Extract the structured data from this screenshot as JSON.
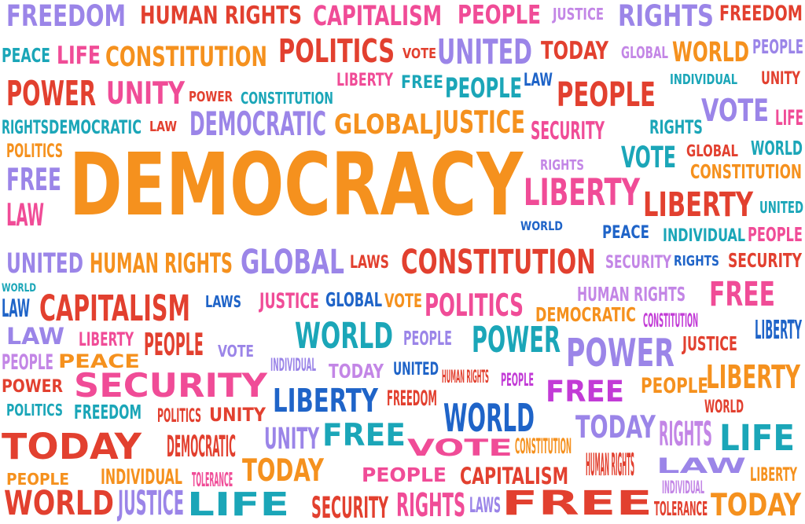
{
  "palette": {
    "orange": "#f5911e",
    "red": "#e2402f",
    "pink": "#f04c97",
    "purple": "#9b85e8",
    "blue": "#1f64c8",
    "teal": "#1ba6b8",
    "magenta": "#c23bd6",
    "lavender": "#c386e6"
  },
  "words": [
    {
      "text": "FREEDOM",
      "color": "purple"
    },
    {
      "text": "HUMAN RIGHTS",
      "color": "red"
    },
    {
      "text": "CAPITALISM",
      "color": "pink"
    },
    {
      "text": "PEOPLE",
      "color": "pink"
    },
    {
      "text": "JUSTICE",
      "color": "lavender"
    },
    {
      "text": "RIGHTS",
      "color": "purple"
    },
    {
      "text": "FREEDOM",
      "color": "red"
    },
    {
      "text": "PEACE",
      "color": "teal"
    },
    {
      "text": "LIFE",
      "color": "pink"
    },
    {
      "text": "CONSTITUTION",
      "color": "orange"
    },
    {
      "text": "POLITICS",
      "color": "red"
    },
    {
      "text": "VOTE",
      "color": "red"
    },
    {
      "text": "UNITED",
      "color": "purple"
    },
    {
      "text": "TODAY",
      "color": "red"
    },
    {
      "text": "GLOBAL",
      "color": "lavender"
    },
    {
      "text": "WORLD",
      "color": "orange"
    },
    {
      "text": "PEOPLE",
      "color": "purple"
    },
    {
      "text": "POWER",
      "color": "red"
    },
    {
      "text": "UNITY",
      "color": "pink"
    },
    {
      "text": "POWER",
      "color": "red"
    },
    {
      "text": "CONSTITUTION",
      "color": "teal"
    },
    {
      "text": "LIBERTY",
      "color": "pink"
    },
    {
      "text": "FREE",
      "color": "teal"
    },
    {
      "text": "PEOPLE",
      "color": "teal"
    },
    {
      "text": "LAW",
      "color": "blue"
    },
    {
      "text": "INDIVIDUAL",
      "color": "teal"
    },
    {
      "text": "UNITY",
      "color": "red"
    },
    {
      "text": "PEOPLE",
      "color": "red"
    },
    {
      "text": "VOTE",
      "color": "purple"
    },
    {
      "text": "RIGHTS",
      "color": "teal"
    },
    {
      "text": "DEMOCRATIC",
      "color": "teal"
    },
    {
      "text": "LAW",
      "color": "red"
    },
    {
      "text": "DEMOCRATIC",
      "color": "purple"
    },
    {
      "text": "GLOBAL",
      "color": "orange"
    },
    {
      "text": "JUSTICE",
      "color": "orange"
    },
    {
      "text": "SECURITY",
      "color": "pink"
    },
    {
      "text": "RIGHTS",
      "color": "teal"
    },
    {
      "text": "LIFE",
      "color": "pink"
    },
    {
      "text": "POLITICS",
      "color": "orange"
    },
    {
      "text": "DEMOCRACY",
      "color": "orange"
    },
    {
      "text": "VOTE",
      "color": "teal"
    },
    {
      "text": "GLOBAL",
      "color": "red"
    },
    {
      "text": "WORLD",
      "color": "teal"
    },
    {
      "text": "FREE",
      "color": "purple"
    },
    {
      "text": "RIGHTS",
      "color": "lavender"
    },
    {
      "text": "CONSTITUTION",
      "color": "orange"
    },
    {
      "text": "LIBERTY",
      "color": "pink"
    },
    {
      "text": "LAW",
      "color": "pink"
    },
    {
      "text": "LIBERTY",
      "color": "red"
    },
    {
      "text": "UNITED",
      "color": "teal"
    },
    {
      "text": "WORLD",
      "color": "blue"
    },
    {
      "text": "PEACE",
      "color": "blue"
    },
    {
      "text": "INDIVIDUAL",
      "color": "teal"
    },
    {
      "text": "PEOPLE",
      "color": "pink"
    },
    {
      "text": "UNITED",
      "color": "purple"
    },
    {
      "text": "HUMAN RIGHTS",
      "color": "orange"
    },
    {
      "text": "GLOBAL",
      "color": "purple"
    },
    {
      "text": "LAWS",
      "color": "red"
    },
    {
      "text": "CONSTITUTION",
      "color": "red"
    },
    {
      "text": "SECURITY",
      "color": "lavender"
    },
    {
      "text": "RIGHTS",
      "color": "blue"
    },
    {
      "text": "SECURITY",
      "color": "red"
    },
    {
      "text": "WORLD",
      "color": "teal"
    },
    {
      "text": "LAW",
      "color": "blue"
    },
    {
      "text": "CAPITALISM",
      "color": "red"
    },
    {
      "text": "LAWS",
      "color": "blue"
    },
    {
      "text": "JUSTICE",
      "color": "pink"
    },
    {
      "text": "GLOBAL",
      "color": "blue"
    },
    {
      "text": "VOTE",
      "color": "orange"
    },
    {
      "text": "POLITICS",
      "color": "pink"
    },
    {
      "text": "HUMAN RIGHTS",
      "color": "lavender"
    },
    {
      "text": "FREE",
      "color": "pink"
    },
    {
      "text": "DEMOCRATIC",
      "color": "orange"
    },
    {
      "text": "CONSTITUTION",
      "color": "magenta"
    },
    {
      "text": "LIBERTY",
      "color": "blue"
    },
    {
      "text": "LAW",
      "color": "purple"
    },
    {
      "text": "LIBERTY",
      "color": "pink"
    },
    {
      "text": "PEOPLE",
      "color": "red"
    },
    {
      "text": "VOTE",
      "color": "purple"
    },
    {
      "text": "WORLD",
      "color": "teal"
    },
    {
      "text": "PEOPLE",
      "color": "purple"
    },
    {
      "text": "POWER",
      "color": "teal"
    },
    {
      "text": "POWER",
      "color": "purple"
    },
    {
      "text": "JUSTICE",
      "color": "red"
    },
    {
      "text": "PEOPLE",
      "color": "lavender"
    },
    {
      "text": "PEACE",
      "color": "orange"
    },
    {
      "text": "INDIVIDUAL",
      "color": "purple"
    },
    {
      "text": "TODAY",
      "color": "lavender"
    },
    {
      "text": "UNITED",
      "color": "blue"
    },
    {
      "text": "LIBERTY",
      "color": "orange"
    },
    {
      "text": "POWER",
      "color": "red"
    },
    {
      "text": "SECURITY",
      "color": "pink"
    },
    {
      "text": "HUMAN RIGHTS",
      "color": "red"
    },
    {
      "text": "PEOPLE",
      "color": "magenta"
    },
    {
      "text": "FREE",
      "color": "magenta"
    },
    {
      "text": "PEOPLE",
      "color": "orange"
    },
    {
      "text": "POLITICS",
      "color": "teal"
    },
    {
      "text": "FREEDOM",
      "color": "teal"
    },
    {
      "text": "POLITICS",
      "color": "red"
    },
    {
      "text": "UNITY",
      "color": "red"
    },
    {
      "text": "LIBERTY",
      "color": "blue"
    },
    {
      "text": "FREEDOM",
      "color": "red"
    },
    {
      "text": "WORLD",
      "color": "blue"
    },
    {
      "text": "WORLD",
      "color": "red"
    },
    {
      "text": "TODAY",
      "color": "red"
    },
    {
      "text": "DEMOCRATIC",
      "color": "red"
    },
    {
      "text": "UNITY",
      "color": "purple"
    },
    {
      "text": "FREE",
      "color": "teal"
    },
    {
      "text": "TODAY",
      "color": "purple"
    },
    {
      "text": "RIGHTS",
      "color": "lavender"
    },
    {
      "text": "LIFE",
      "color": "teal"
    },
    {
      "text": "VOTE",
      "color": "pink"
    },
    {
      "text": "CONSTITUTION",
      "color": "orange"
    },
    {
      "text": "PEOPLE",
      "color": "orange"
    },
    {
      "text": "INDIVIDUAL",
      "color": "orange"
    },
    {
      "text": "TOLERANCE",
      "color": "pink"
    },
    {
      "text": "TODAY",
      "color": "orange"
    },
    {
      "text": "PEOPLE",
      "color": "pink"
    },
    {
      "text": "CAPITALISM",
      "color": "red"
    },
    {
      "text": "HUMAN RIGHTS",
      "color": "red"
    },
    {
      "text": "LAW",
      "color": "purple"
    },
    {
      "text": "INDIVIDUAL",
      "color": "lavender"
    },
    {
      "text": "LIBERTY",
      "color": "orange"
    },
    {
      "text": "WORLD",
      "color": "red"
    },
    {
      "text": "JUSTICE",
      "color": "purple"
    },
    {
      "text": "LIFE",
      "color": "teal"
    },
    {
      "text": "SECURITY",
      "color": "red"
    },
    {
      "text": "RIGHTS",
      "color": "pink"
    },
    {
      "text": "LAWS",
      "color": "purple"
    },
    {
      "text": "FREE",
      "color": "red"
    },
    {
      "text": "TOLERANCE",
      "color": "red"
    },
    {
      "text": "TODAY",
      "color": "orange"
    },
    {
      "text": "PEACE",
      "color": "purple"
    }
  ]
}
